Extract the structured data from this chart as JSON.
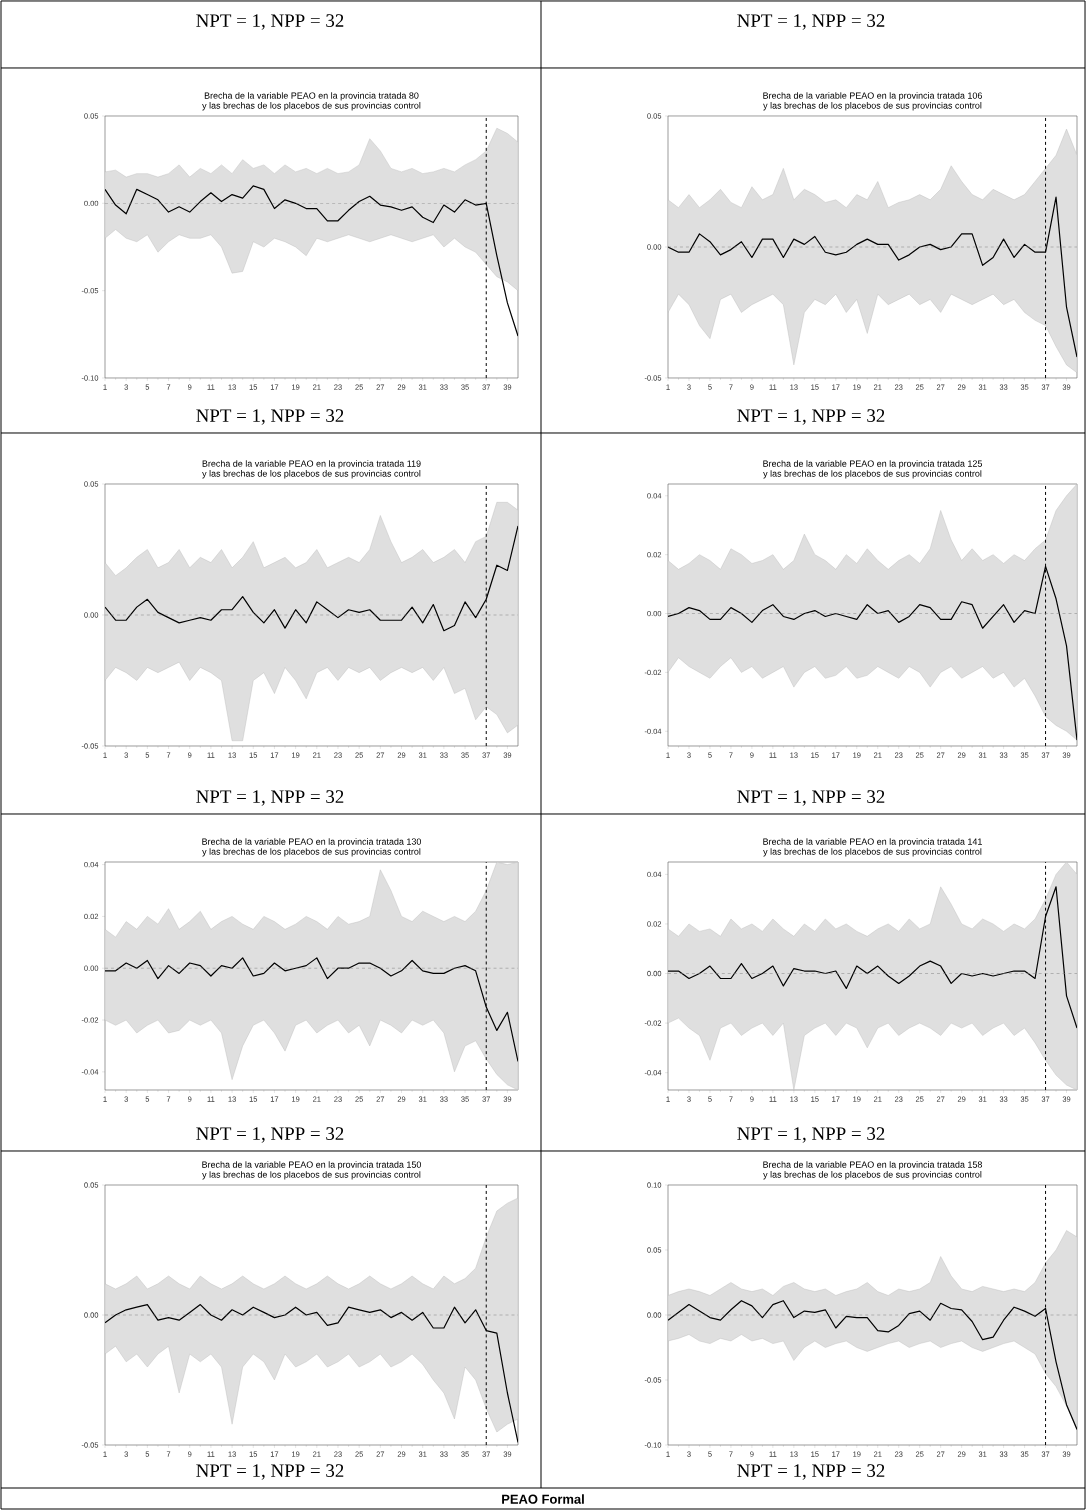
{
  "chart_data": [
    {
      "type": "other",
      "annotations": [
        "NPT = 1, NPP = 32"
      ]
    },
    {
      "type": "other",
      "annotations": [
        "NPT = 1, NPP = 32"
      ]
    },
    {
      "type": "line",
      "title": "Brecha de la variable PEAO en la provincia tratada 80",
      "subtitle": "y las brechas de los placebos de sus provincias control",
      "annotations": [
        "NPT = 1, NPP = 32"
      ],
      "x": [
        1,
        2,
        3,
        4,
        5,
        6,
        7,
        8,
        9,
        10,
        11,
        12,
        13,
        14,
        15,
        16,
        17,
        18,
        19,
        20,
        21,
        22,
        23,
        24,
        25,
        26,
        27,
        28,
        29,
        30,
        31,
        32,
        33,
        34,
        35,
        36,
        37,
        38,
        39,
        40
      ],
      "xlim": [
        1,
        40
      ],
      "xticks": [
        1,
        3,
        5,
        7,
        9,
        11,
        13,
        15,
        17,
        19,
        21,
        23,
        25,
        27,
        29,
        31,
        33,
        35,
        37,
        39
      ],
      "ylim": [
        -0.1,
        0.05
      ],
      "yticks": [
        {
          "value": -0.1,
          "label": "-0.10"
        },
        {
          "value": -0.05,
          "label": "-0.05"
        },
        {
          "value": 0.0,
          "label": "0.00"
        },
        {
          "value": 0.05,
          "label": "0.05"
        }
      ],
      "ref_lines": [
        {
          "axis": "x",
          "value": 37,
          "color": "#000000",
          "line_style": "dashed"
        },
        {
          "axis": "y",
          "value": 0,
          "color": "#808080",
          "line_style": "dashed"
        }
      ],
      "series": [
        {
          "color": "#000000",
          "values": [
            0.008,
            -0.001,
            -0.006,
            0.008,
            0.005,
            0.002,
            -0.005,
            -0.002,
            -0.005,
            0.001,
            0.006,
            0.001,
            0.005,
            0.003,
            0.01,
            0.008,
            -0.003,
            0.002,
            0.0,
            -0.003,
            -0.003,
            -0.01,
            -0.01,
            -0.004,
            0.001,
            0.004,
            -0.001,
            -0.002,
            -0.004,
            -0.002,
            -0.008,
            -0.011,
            -0.001,
            -0.005,
            0.002,
            -0.001,
            0.0,
            -0.03,
            -0.057,
            -0.076
          ],
          "upper": [
            0.018,
            0.019,
            0.015,
            0.017,
            0.017,
            0.015,
            0.017,
            0.022,
            0.015,
            0.02,
            0.017,
            0.022,
            0.017,
            0.025,
            0.02,
            0.022,
            0.017,
            0.022,
            0.018,
            0.02,
            0.017,
            0.02,
            0.017,
            0.018,
            0.022,
            0.037,
            0.03,
            0.02,
            0.018,
            0.02,
            0.017,
            0.018,
            0.02,
            0.018,
            0.022,
            0.025,
            0.03,
            0.043,
            0.04,
            0.035
          ],
          "lower": [
            -0.02,
            -0.015,
            -0.02,
            -0.022,
            -0.018,
            -0.028,
            -0.022,
            -0.018,
            -0.02,
            -0.02,
            -0.018,
            -0.025,
            -0.04,
            -0.039,
            -0.022,
            -0.025,
            -0.02,
            -0.022,
            -0.025,
            -0.03,
            -0.02,
            -0.022,
            -0.02,
            -0.018,
            -0.02,
            -0.022,
            -0.02,
            -0.018,
            -0.02,
            -0.022,
            -0.02,
            -0.018,
            -0.025,
            -0.02,
            -0.025,
            -0.028,
            -0.035,
            -0.042,
            -0.045,
            -0.05
          ]
        }
      ]
    },
    {
      "type": "line",
      "title": "Brecha de la variable PEAO en la provincia tratada 106",
      "subtitle": "y las brechas de los placebos de sus provincias control",
      "annotations": [
        "NPT = 1, NPP = 32"
      ],
      "x": [
        1,
        2,
        3,
        4,
        5,
        6,
        7,
        8,
        9,
        10,
        11,
        12,
        13,
        14,
        15,
        16,
        17,
        18,
        19,
        20,
        21,
        22,
        23,
        24,
        25,
        26,
        27,
        28,
        29,
        30,
        31,
        32,
        33,
        34,
        35,
        36,
        37,
        38,
        39,
        40
      ],
      "xlim": [
        1,
        40
      ],
      "xticks": [
        1,
        3,
        5,
        7,
        9,
        11,
        13,
        15,
        17,
        19,
        21,
        23,
        25,
        27,
        29,
        31,
        33,
        35,
        37,
        39
      ],
      "ylim": [
        -0.05,
        0.05
      ],
      "yticks": [
        {
          "value": -0.05,
          "label": "-0.05"
        },
        {
          "value": 0.0,
          "label": "0.00"
        },
        {
          "value": 0.05,
          "label": "0.05"
        }
      ],
      "ref_lines": [
        {
          "axis": "x",
          "value": 37,
          "color": "#000000",
          "line_style": "dashed"
        },
        {
          "axis": "y",
          "value": 0,
          "color": "#808080",
          "line_style": "dashed"
        }
      ],
      "series": [
        {
          "color": "#000000",
          "values": [
            0.0,
            -0.002,
            -0.002,
            0.005,
            0.002,
            -0.003,
            -0.001,
            0.002,
            -0.004,
            0.003,
            0.003,
            -0.004,
            0.003,
            0.001,
            0.004,
            -0.002,
            -0.003,
            -0.002,
            0.001,
            0.003,
            0.001,
            0.001,
            -0.005,
            -0.003,
            0.0,
            0.001,
            -0.001,
            0.0,
            0.005,
            0.005,
            -0.007,
            -0.004,
            0.003,
            -0.004,
            0.001,
            -0.002,
            -0.002,
            0.019,
            -0.023,
            -0.042
          ],
          "upper": [
            0.018,
            0.015,
            0.02,
            0.015,
            0.018,
            0.022,
            0.017,
            0.015,
            0.023,
            0.018,
            0.02,
            0.03,
            0.018,
            0.022,
            0.02,
            0.017,
            0.018,
            0.015,
            0.02,
            0.018,
            0.025,
            0.015,
            0.017,
            0.018,
            0.02,
            0.018,
            0.022,
            0.031,
            0.025,
            0.02,
            0.018,
            0.022,
            0.02,
            0.018,
            0.02,
            0.025,
            0.03,
            0.035,
            0.045,
            0.035
          ],
          "lower": [
            -0.025,
            -0.018,
            -0.022,
            -0.03,
            -0.035,
            -0.02,
            -0.018,
            -0.025,
            -0.022,
            -0.02,
            -0.018,
            -0.022,
            -0.045,
            -0.025,
            -0.02,
            -0.022,
            -0.018,
            -0.025,
            -0.02,
            -0.033,
            -0.018,
            -0.022,
            -0.02,
            -0.018,
            -0.022,
            -0.02,
            -0.025,
            -0.018,
            -0.02,
            -0.022,
            -0.02,
            -0.018,
            -0.022,
            -0.02,
            -0.025,
            -0.028,
            -0.03,
            -0.038,
            -0.045,
            -0.048
          ]
        }
      ]
    },
    {
      "type": "line",
      "title": "Brecha de la variable PEAO en la provincia tratada 119",
      "subtitle": "y las brechas de los placebos de sus provincias control",
      "annotations": [
        "NPT = 1, NPP = 32"
      ],
      "x": [
        1,
        2,
        3,
        4,
        5,
        6,
        7,
        8,
        9,
        10,
        11,
        12,
        13,
        14,
        15,
        16,
        17,
        18,
        19,
        20,
        21,
        22,
        23,
        24,
        25,
        26,
        27,
        28,
        29,
        30,
        31,
        32,
        33,
        34,
        35,
        36,
        37,
        38,
        39,
        40
      ],
      "xlim": [
        1,
        40
      ],
      "xticks": [
        1,
        3,
        5,
        7,
        9,
        11,
        13,
        15,
        17,
        19,
        21,
        23,
        25,
        27,
        29,
        31,
        33,
        35,
        37,
        39
      ],
      "ylim": [
        -0.05,
        0.05
      ],
      "yticks": [
        {
          "value": -0.05,
          "label": "-0.05"
        },
        {
          "value": 0.0,
          "label": "0.00"
        },
        {
          "value": 0.05,
          "label": "0.05"
        }
      ],
      "ref_lines": [
        {
          "axis": "x",
          "value": 37,
          "color": "#000000",
          "line_style": "dashed"
        },
        {
          "axis": "y",
          "value": 0,
          "color": "#808080",
          "line_style": "dashed"
        }
      ],
      "series": [
        {
          "color": "#000000",
          "values": [
            0.003,
            -0.002,
            -0.002,
            0.003,
            0.006,
            0.001,
            -0.001,
            -0.003,
            -0.002,
            -0.001,
            -0.002,
            0.002,
            0.002,
            0.007,
            0.001,
            -0.003,
            0.002,
            -0.005,
            0.002,
            -0.003,
            0.005,
            0.002,
            -0.001,
            0.002,
            0.001,
            0.002,
            -0.002,
            -0.002,
            -0.002,
            0.003,
            -0.003,
            0.004,
            -0.006,
            -0.004,
            0.005,
            -0.001,
            0.006,
            0.019,
            0.017,
            0.034
          ],
          "upper": [
            0.02,
            0.015,
            0.018,
            0.022,
            0.025,
            0.018,
            0.02,
            0.025,
            0.018,
            0.022,
            0.02,
            0.025,
            0.018,
            0.022,
            0.028,
            0.018,
            0.02,
            0.022,
            0.018,
            0.02,
            0.025,
            0.018,
            0.02,
            0.022,
            0.02,
            0.025,
            0.038,
            0.028,
            0.02,
            0.022,
            0.025,
            0.02,
            0.022,
            0.025,
            0.02,
            0.028,
            0.03,
            0.043,
            0.043,
            0.04
          ],
          "lower": [
            -0.025,
            -0.02,
            -0.022,
            -0.025,
            -0.02,
            -0.022,
            -0.02,
            -0.018,
            -0.025,
            -0.02,
            -0.022,
            -0.025,
            -0.048,
            -0.048,
            -0.025,
            -0.022,
            -0.03,
            -0.02,
            -0.025,
            -0.032,
            -0.022,
            -0.02,
            -0.025,
            -0.02,
            -0.022,
            -0.02,
            -0.025,
            -0.022,
            -0.02,
            -0.022,
            -0.02,
            -0.025,
            -0.02,
            -0.03,
            -0.028,
            -0.04,
            -0.035,
            -0.038,
            -0.045,
            -0.042
          ]
        }
      ]
    },
    {
      "type": "line",
      "title": "Brecha de la variable PEAO en la provincia tratada 125",
      "subtitle": "y las brechas de los placebos de sus provincias control",
      "annotations": [
        "NPT = 1, NPP = 32"
      ],
      "x": [
        1,
        2,
        3,
        4,
        5,
        6,
        7,
        8,
        9,
        10,
        11,
        12,
        13,
        14,
        15,
        16,
        17,
        18,
        19,
        20,
        21,
        22,
        23,
        24,
        25,
        26,
        27,
        28,
        29,
        30,
        31,
        32,
        33,
        34,
        35,
        36,
        37,
        38,
        39,
        40
      ],
      "xlim": [
        1,
        40
      ],
      "xticks": [
        1,
        3,
        5,
        7,
        9,
        11,
        13,
        15,
        17,
        19,
        21,
        23,
        25,
        27,
        29,
        31,
        33,
        35,
        37,
        39
      ],
      "ylim": [
        -0.045,
        0.044
      ],
      "yticks": [
        {
          "value": -0.04,
          "label": "-0.04"
        },
        {
          "value": -0.02,
          "label": "-0.02"
        },
        {
          "value": 0.0,
          "label": "0.00"
        },
        {
          "value": 0.02,
          "label": "0.02"
        },
        {
          "value": 0.04,
          "label": "0.04"
        }
      ],
      "ref_lines": [
        {
          "axis": "x",
          "value": 37,
          "color": "#000000",
          "line_style": "dashed"
        },
        {
          "axis": "y",
          "value": 0,
          "color": "#808080",
          "line_style": "dashed"
        }
      ],
      "series": [
        {
          "color": "#000000",
          "values": [
            -0.001,
            0.0,
            0.002,
            0.001,
            -0.002,
            -0.002,
            0.002,
            0.0,
            -0.003,
            0.001,
            0.003,
            -0.001,
            -0.002,
            0.0,
            0.001,
            -0.001,
            0.0,
            -0.001,
            -0.002,
            0.003,
            0.0,
            0.001,
            -0.003,
            -0.001,
            0.003,
            0.002,
            -0.002,
            -0.002,
            0.004,
            0.003,
            -0.005,
            -0.001,
            0.003,
            -0.003,
            0.001,
            0.0,
            0.016,
            0.005,
            -0.011,
            -0.043
          ],
          "upper": [
            0.018,
            0.015,
            0.017,
            0.02,
            0.018,
            0.015,
            0.022,
            0.02,
            0.017,
            0.018,
            0.02,
            0.015,
            0.018,
            0.027,
            0.02,
            0.018,
            0.015,
            0.02,
            0.017,
            0.022,
            0.018,
            0.015,
            0.018,
            0.02,
            0.017,
            0.022,
            0.035,
            0.025,
            0.018,
            0.022,
            0.018,
            0.02,
            0.017,
            0.02,
            0.018,
            0.022,
            0.025,
            0.035,
            0.04,
            0.044
          ],
          "lower": [
            -0.02,
            -0.015,
            -0.018,
            -0.02,
            -0.022,
            -0.018,
            -0.015,
            -0.02,
            -0.018,
            -0.022,
            -0.02,
            -0.018,
            -0.025,
            -0.02,
            -0.018,
            -0.022,
            -0.021,
            -0.018,
            -0.022,
            -0.021,
            -0.018,
            -0.02,
            -0.022,
            -0.018,
            -0.02,
            -0.025,
            -0.02,
            -0.018,
            -0.022,
            -0.02,
            -0.018,
            -0.022,
            -0.02,
            -0.025,
            -0.022,
            -0.028,
            -0.035,
            -0.038,
            -0.04,
            -0.043
          ]
        }
      ]
    },
    {
      "type": "line",
      "title": "Brecha de la variable PEAO en la provincia tratada 130",
      "subtitle": "y las brechas de los placebos de sus provincias control",
      "annotations": [
        "NPT = 1, NPP = 32"
      ],
      "x": [
        1,
        2,
        3,
        4,
        5,
        6,
        7,
        8,
        9,
        10,
        11,
        12,
        13,
        14,
        15,
        16,
        17,
        18,
        19,
        20,
        21,
        22,
        23,
        24,
        25,
        26,
        27,
        28,
        29,
        30,
        31,
        32,
        33,
        34,
        35,
        36,
        37,
        38,
        39,
        40
      ],
      "xlim": [
        1,
        40
      ],
      "xticks": [
        1,
        3,
        5,
        7,
        9,
        11,
        13,
        15,
        17,
        19,
        21,
        23,
        25,
        27,
        29,
        31,
        33,
        35,
        37,
        39
      ],
      "ylim": [
        -0.047,
        0.041
      ],
      "yticks": [
        {
          "value": -0.04,
          "label": "-0.04"
        },
        {
          "value": -0.02,
          "label": "-0.02"
        },
        {
          "value": 0.0,
          "label": "0.00"
        },
        {
          "value": 0.02,
          "label": "0.02"
        },
        {
          "value": 0.04,
          "label": "0.04"
        }
      ],
      "ref_lines": [
        {
          "axis": "x",
          "value": 37,
          "color": "#000000",
          "line_style": "dashed"
        },
        {
          "axis": "y",
          "value": 0,
          "color": "#808080",
          "line_style": "dashed"
        }
      ],
      "series": [
        {
          "color": "#000000",
          "values": [
            -0.001,
            -0.001,
            0.002,
            0.0,
            0.003,
            -0.004,
            0.001,
            -0.002,
            0.002,
            0.001,
            -0.003,
            0.001,
            0.0,
            0.004,
            -0.003,
            -0.002,
            0.002,
            -0.001,
            0.0,
            0.001,
            0.004,
            -0.004,
            0.0,
            0.0,
            0.002,
            0.002,
            0.0,
            -0.003,
            -0.001,
            0.003,
            -0.001,
            -0.002,
            -0.002,
            0.0,
            0.001,
            -0.001,
            -0.015,
            -0.024,
            -0.017,
            -0.036
          ],
          "upper": [
            0.015,
            0.012,
            0.018,
            0.015,
            0.02,
            0.017,
            0.023,
            0.015,
            0.018,
            0.022,
            0.015,
            0.018,
            0.02,
            0.017,
            0.015,
            0.02,
            0.018,
            0.015,
            0.017,
            0.02,
            0.018,
            0.015,
            0.02,
            0.017,
            0.018,
            0.02,
            0.038,
            0.03,
            0.02,
            0.018,
            0.022,
            0.02,
            0.018,
            0.02,
            0.018,
            0.022,
            0.03,
            0.041,
            0.04,
            0.041
          ],
          "lower": [
            -0.02,
            -0.022,
            -0.02,
            -0.025,
            -0.022,
            -0.02,
            -0.025,
            -0.024,
            -0.02,
            -0.022,
            -0.02,
            -0.025,
            -0.043,
            -0.03,
            -0.022,
            -0.02,
            -0.025,
            -0.032,
            -0.022,
            -0.02,
            -0.025,
            -0.022,
            -0.02,
            -0.025,
            -0.022,
            -0.03,
            -0.02,
            -0.022,
            -0.025,
            -0.02,
            -0.022,
            -0.02,
            -0.025,
            -0.04,
            -0.03,
            -0.028,
            -0.035,
            -0.041,
            -0.045,
            -0.047
          ]
        }
      ]
    },
    {
      "type": "line",
      "title": "Brecha de la variable PEAO en la provincia tratada 141",
      "subtitle": "y las brechas de los placebos de sus provincias control",
      "annotations": [
        "NPT = 1, NPP = 32"
      ],
      "x": [
        1,
        2,
        3,
        4,
        5,
        6,
        7,
        8,
        9,
        10,
        11,
        12,
        13,
        14,
        15,
        16,
        17,
        18,
        19,
        20,
        21,
        22,
        23,
        24,
        25,
        26,
        27,
        28,
        29,
        30,
        31,
        32,
        33,
        34,
        35,
        36,
        37,
        38,
        39,
        40
      ],
      "xlim": [
        1,
        40
      ],
      "xticks": [
        1,
        3,
        5,
        7,
        9,
        11,
        13,
        15,
        17,
        19,
        21,
        23,
        25,
        27,
        29,
        31,
        33,
        35,
        37,
        39
      ],
      "ylim": [
        -0.047,
        0.045
      ],
      "yticks": [
        {
          "value": -0.04,
          "label": "-0.04"
        },
        {
          "value": -0.02,
          "label": "-0.02"
        },
        {
          "value": 0.0,
          "label": "0.00"
        },
        {
          "value": 0.02,
          "label": "0.02"
        },
        {
          "value": 0.04,
          "label": "0.04"
        }
      ],
      "ref_lines": [
        {
          "axis": "x",
          "value": 37,
          "color": "#000000",
          "line_style": "dashed"
        },
        {
          "axis": "y",
          "value": 0,
          "color": "#808080",
          "line_style": "dashed"
        }
      ],
      "series": [
        {
          "color": "#000000",
          "values": [
            0.001,
            0.001,
            -0.002,
            0.0,
            0.003,
            -0.002,
            -0.002,
            0.004,
            -0.002,
            0.0,
            0.003,
            -0.005,
            0.002,
            0.001,
            0.001,
            0.0,
            0.001,
            -0.006,
            0.003,
            0.0,
            0.003,
            -0.001,
            -0.004,
            -0.001,
            0.003,
            0.005,
            0.003,
            -0.004,
            0.0,
            -0.001,
            0.0,
            -0.001,
            0.0,
            0.001,
            0.001,
            -0.002,
            0.023,
            0.035,
            -0.009,
            -0.022
          ],
          "upper": [
            0.018,
            0.015,
            0.02,
            0.017,
            0.018,
            0.015,
            0.022,
            0.018,
            0.02,
            0.017,
            0.022,
            0.018,
            0.015,
            0.02,
            0.017,
            0.022,
            0.018,
            0.02,
            0.017,
            0.015,
            0.018,
            0.02,
            0.017,
            0.022,
            0.018,
            0.02,
            0.035,
            0.028,
            0.02,
            0.018,
            0.022,
            0.02,
            0.017,
            0.02,
            0.018,
            0.022,
            0.03,
            0.04,
            0.045,
            0.04
          ],
          "lower": [
            -0.02,
            -0.018,
            -0.022,
            -0.025,
            -0.035,
            -0.022,
            -0.02,
            -0.025,
            -0.022,
            -0.02,
            -0.025,
            -0.02,
            -0.047,
            -0.025,
            -0.022,
            -0.02,
            -0.025,
            -0.02,
            -0.022,
            -0.03,
            -0.022,
            -0.02,
            -0.025,
            -0.022,
            -0.02,
            -0.022,
            -0.025,
            -0.02,
            -0.022,
            -0.02,
            -0.025,
            -0.022,
            -0.02,
            -0.025,
            -0.022,
            -0.028,
            -0.035,
            -0.041,
            -0.045,
            -0.047
          ]
        }
      ]
    },
    {
      "type": "line",
      "title": "Brecha de la variable PEAO en la provincia tratada 150",
      "subtitle": "y las brechas de los placebos de sus provincias control",
      "annotations": [
        "NPT = 1, NPP = 32"
      ],
      "x": [
        1,
        2,
        3,
        4,
        5,
        6,
        7,
        8,
        9,
        10,
        11,
        12,
        13,
        14,
        15,
        16,
        17,
        18,
        19,
        20,
        21,
        22,
        23,
        24,
        25,
        26,
        27,
        28,
        29,
        30,
        31,
        32,
        33,
        34,
        35,
        36,
        37,
        38,
        39,
        40
      ],
      "xlim": [
        1,
        40
      ],
      "xticks": [
        1,
        3,
        5,
        7,
        9,
        11,
        13,
        15,
        17,
        19,
        21,
        23,
        25,
        27,
        29,
        31,
        33,
        35,
        37,
        39
      ],
      "ylim": [
        -0.05,
        0.05
      ],
      "yticks": [
        {
          "value": -0.05,
          "label": "-0.05"
        },
        {
          "value": 0.0,
          "label": "0.00"
        },
        {
          "value": 0.05,
          "label": "0.05"
        }
      ],
      "ref_lines": [
        {
          "axis": "x",
          "value": 37,
          "color": "#000000",
          "line_style": "dashed"
        },
        {
          "axis": "y",
          "value": 0,
          "color": "#808080",
          "line_style": "dashed"
        }
      ],
      "series": [
        {
          "color": "#000000",
          "values": [
            -0.003,
            0.0,
            0.002,
            0.003,
            0.004,
            -0.002,
            -0.001,
            -0.002,
            0.001,
            0.004,
            0.0,
            -0.002,
            0.002,
            0.0,
            0.003,
            0.001,
            -0.001,
            0.0,
            0.003,
            0.0,
            0.001,
            -0.004,
            -0.003,
            0.003,
            0.002,
            0.001,
            0.002,
            -0.001,
            0.001,
            -0.002,
            0.001,
            -0.005,
            -0.005,
            0.003,
            -0.003,
            0.002,
            -0.006,
            -0.007,
            -0.03,
            -0.049
          ],
          "upper": [
            0.012,
            0.01,
            0.012,
            0.015,
            0.01,
            0.012,
            0.015,
            0.012,
            0.01,
            0.015,
            0.012,
            0.01,
            0.012,
            0.015,
            0.012,
            0.01,
            0.012,
            0.015,
            0.012,
            0.01,
            0.012,
            0.015,
            0.012,
            0.01,
            0.012,
            0.015,
            0.012,
            0.01,
            0.012,
            0.015,
            0.012,
            0.01,
            0.015,
            0.012,
            0.014,
            0.018,
            0.03,
            0.04,
            0.043,
            0.045
          ],
          "lower": [
            -0.015,
            -0.012,
            -0.018,
            -0.015,
            -0.02,
            -0.015,
            -0.012,
            -0.03,
            -0.015,
            -0.018,
            -0.015,
            -0.02,
            -0.042,
            -0.02,
            -0.015,
            -0.018,
            -0.025,
            -0.015,
            -0.02,
            -0.018,
            -0.015,
            -0.02,
            -0.018,
            -0.015,
            -0.02,
            -0.018,
            -0.015,
            -0.02,
            -0.018,
            -0.015,
            -0.019,
            -0.025,
            -0.03,
            -0.04,
            -0.02,
            -0.025,
            -0.036,
            -0.045,
            -0.042,
            -0.04
          ]
        }
      ]
    },
    {
      "type": "line",
      "title": "Brecha de la variable PEAO en la provincia tratada 158",
      "subtitle": "y las brechas de los placebos de sus provincias control",
      "annotations": [
        "NPT = 1, NPP = 32"
      ],
      "x": [
        1,
        2,
        3,
        4,
        5,
        6,
        7,
        8,
        9,
        10,
        11,
        12,
        13,
        14,
        15,
        16,
        17,
        18,
        19,
        20,
        21,
        22,
        23,
        24,
        25,
        26,
        27,
        28,
        29,
        30,
        31,
        32,
        33,
        34,
        35,
        36,
        37,
        38,
        39,
        40
      ],
      "xlim": [
        1,
        40
      ],
      "xticks": [
        1,
        3,
        5,
        7,
        9,
        11,
        13,
        15,
        17,
        19,
        21,
        23,
        25,
        27,
        29,
        31,
        33,
        35,
        37,
        39
      ],
      "ylim": [
        -0.1,
        0.1
      ],
      "yticks": [
        {
          "value": -0.1,
          "label": "-0.10"
        },
        {
          "value": -0.05,
          "label": "-0.05"
        },
        {
          "value": 0.0,
          "label": "0.00"
        },
        {
          "value": 0.05,
          "label": "0.05"
        },
        {
          "value": 0.1,
          "label": "0.10"
        }
      ],
      "ref_lines": [
        {
          "axis": "x",
          "value": 37,
          "color": "#000000",
          "line_style": "dashed"
        },
        {
          "axis": "y",
          "value": 0,
          "color": "#808080",
          "line_style": "dashed"
        }
      ],
      "series": [
        {
          "color": "#000000",
          "values": [
            -0.004,
            0.002,
            0.008,
            0.003,
            -0.002,
            -0.004,
            0.004,
            0.011,
            0.007,
            -0.002,
            0.008,
            0.011,
            -0.002,
            0.003,
            0.002,
            0.004,
            -0.01,
            -0.001,
            -0.002,
            -0.002,
            -0.012,
            -0.013,
            -0.008,
            0.001,
            0.003,
            -0.004,
            0.009,
            0.005,
            0.004,
            -0.005,
            -0.019,
            -0.017,
            -0.004,
            0.006,
            0.003,
            -0.001,
            0.005,
            -0.036,
            -0.069,
            -0.088
          ],
          "upper": [
            0.015,
            0.018,
            0.02,
            0.018,
            0.015,
            0.02,
            0.025,
            0.02,
            0.018,
            0.02,
            0.015,
            0.022,
            0.025,
            0.02,
            0.018,
            0.02,
            0.015,
            0.018,
            0.02,
            0.025,
            0.018,
            0.015,
            0.02,
            0.018,
            0.02,
            0.025,
            0.045,
            0.03,
            0.02,
            0.018,
            0.022,
            0.02,
            0.018,
            0.02,
            0.018,
            0.025,
            0.04,
            0.05,
            0.065,
            0.06
          ],
          "lower": [
            -0.02,
            -0.018,
            -0.015,
            -0.02,
            -0.022,
            -0.018,
            -0.02,
            -0.015,
            -0.02,
            -0.018,
            -0.022,
            -0.02,
            -0.035,
            -0.025,
            -0.02,
            -0.025,
            -0.022,
            -0.02,
            -0.025,
            -0.028,
            -0.025,
            -0.022,
            -0.02,
            -0.025,
            -0.022,
            -0.02,
            -0.025,
            -0.022,
            -0.02,
            -0.025,
            -0.028,
            -0.025,
            -0.022,
            -0.02,
            -0.025,
            -0.03,
            -0.045,
            -0.055,
            -0.07,
            -0.088
          ]
        }
      ]
    },
    {
      "type": "other",
      "title": "PEAO Formal"
    }
  ]
}
